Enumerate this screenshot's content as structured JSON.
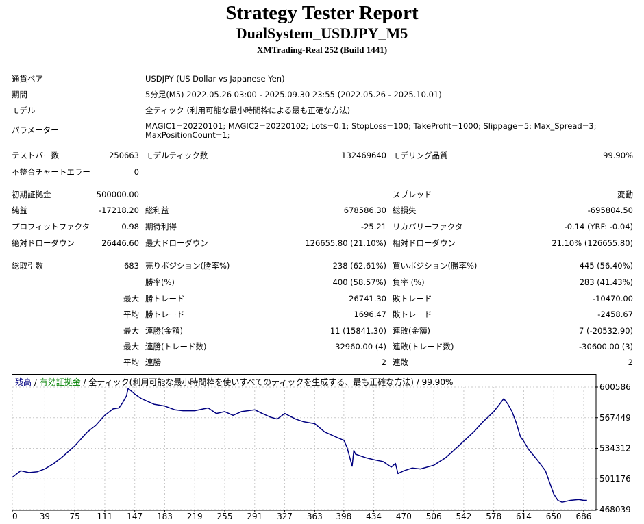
{
  "header": {
    "title": "Strategy Tester Report",
    "subtitle": "DualSystem_USDJPY_M5",
    "account": "XMTrading-Real 252 (Build 1441)"
  },
  "info": {
    "symbol_label": "通貨ペア",
    "symbol_value": "USDJPY (US Dollar vs Japanese Yen)",
    "period_label": "期間",
    "period_value": "5分足(M5) 2022.05.26 03:00 - 2025.09.30 23:55 (2022.05.26 - 2025.10.01)",
    "model_label": "モデル",
    "model_value": "全ティック (利用可能な最小時間枠による最も正確な方法)",
    "params_label": "パラメーター",
    "params_line1": "MAGIC1=20220101; MAGIC2=20220102; Lots=0.1; StopLoss=100; TakeProfit=1000; Slippage=5; Max_Spread=3;",
    "params_line2": "MaxPositionCount=1;"
  },
  "stats": {
    "bars_label": "テストバー数",
    "bars_value": "250663",
    "ticks_label": "モデルティック数",
    "ticks_value": "132469640",
    "quality_label": "モデリング品質",
    "quality_value": "99.90%",
    "mismatch_label": "不整合チャートエラー",
    "mismatch_value": "0",
    "deposit_label": "初期証拠金",
    "deposit_value": "500000.00",
    "spread_label": "スプレッド",
    "spread_value": "変動",
    "net_label": "純益",
    "net_value": "-17218.20",
    "gross_profit_label": "総利益",
    "gross_profit_value": "678586.30",
    "gross_loss_label": "総損失",
    "gross_loss_value": "-695804.50",
    "pf_label": "プロフィットファクタ",
    "pf_value": "0.98",
    "expected_label": "期待利得",
    "expected_value": "-25.21",
    "recovery_label": "リカバリーファクタ",
    "recovery_value": "-0.14 (YRF: -0.04)",
    "abs_dd_label": "絶対ドローダウン",
    "abs_dd_value": "26446.60",
    "max_dd_label": "最大ドローダウン",
    "max_dd_value": "126655.80 (21.10%)",
    "rel_dd_label": "相対ドローダウン",
    "rel_dd_value": "21.10% (126655.80)",
    "trades_label": "総取引数",
    "trades_value": "683",
    "short_label": "売りポジション(勝率%)",
    "short_value": "238 (62.61%)",
    "long_label": "買いポジション(勝率%)",
    "long_value": "445 (56.40%)",
    "winrate_label": "勝率(%)",
    "winrate_value": "400 (58.57%)",
    "lossrate_label": "負率 (%)",
    "lossrate_value": "283 (41.43%)",
    "max_word": "最大",
    "avg_word": "平均",
    "best_label": "勝トレード",
    "best_value": "26741.30",
    "worst_label": "敗トレード",
    "worst_value": "-10470.00",
    "avg_win_label": "勝トレード",
    "avg_win_value": "1696.47",
    "avg_loss_label": "敗トレード",
    "avg_loss_value": "-2458.67",
    "max_consec_wins_label": "連勝(金額)",
    "max_consec_wins_value": "11 (15841.30)",
    "max_consec_losses_label": "連敗(金額)",
    "max_consec_losses_value": "7 (-20532.90)",
    "max_consec_profit_label": "連勝(トレード数)",
    "max_consec_profit_value": "32960.00 (4)",
    "max_consec_loss_label": "連敗(トレード数)",
    "max_consec_loss_value": "-30600.00 (3)",
    "avg_consec_wins_label": "連勝",
    "avg_consec_wins_value": "2",
    "avg_consec_losses_label": "連敗",
    "avg_consec_losses_value": "2"
  },
  "legend": {
    "balance": "残高",
    "sep1": " / ",
    "equity": "有効証拠金",
    "rest": " / 全ティック(利用可能な最小時間枠を使いすべてのティックを生成する、最も正確な方法) / 99.90%",
    "balance_color": "#000080",
    "equity_color": "#008000"
  },
  "chart_data": {
    "type": "line",
    "title": "",
    "xlabel": "",
    "ylabel": "",
    "xlim": [
      0,
      700
    ],
    "ylim": [
      468039,
      600586
    ],
    "x_ticks": [
      0,
      39,
      75,
      111,
      147,
      183,
      219,
      255,
      291,
      327,
      363,
      398,
      434,
      470,
      506,
      542,
      578,
      614,
      650,
      686
    ],
    "y_ticks": [
      600586,
      567449,
      534312,
      501176,
      468039
    ],
    "grid": true,
    "series": [
      {
        "name": "残高",
        "color": "#000080",
        "x": [
          0,
          10,
          20,
          30,
          39,
          50,
          60,
          75,
          90,
          100,
          111,
          121,
          128,
          132,
          137,
          139,
          147,
          155,
          160,
          170,
          183,
          195,
          205,
          219,
          235,
          245,
          255,
          265,
          275,
          291,
          300,
          310,
          318,
          327,
          340,
          350,
          363,
          375,
          390,
          398,
          402,
          408,
          410,
          412,
          425,
          434,
          445,
          455,
          460,
          463,
          470,
          480,
          490,
          506,
          520,
          530,
          542,
          555,
          565,
          578,
          585,
          590,
          595,
          600,
          605,
          610,
          614,
          620,
          630,
          640,
          650,
          655,
          660,
          670,
          680,
          686,
          690
        ],
        "y": [
          503000,
          510000,
          508000,
          509000,
          512000,
          518000,
          525000,
          537000,
          552000,
          559000,
          570000,
          577000,
          578000,
          583000,
          591000,
          599000,
          593000,
          588000,
          586000,
          582000,
          580000,
          576000,
          575000,
          575000,
          578000,
          572000,
          574000,
          570000,
          574000,
          576000,
          572000,
          568000,
          566000,
          572000,
          566000,
          563000,
          561000,
          552000,
          546000,
          543000,
          535000,
          515000,
          532000,
          528000,
          524000,
          522000,
          520000,
          514000,
          518000,
          507000,
          510000,
          513000,
          512000,
          516000,
          524000,
          532000,
          542000,
          553000,
          563000,
          574000,
          582000,
          588000,
          582000,
          574000,
          562000,
          547000,
          542000,
          533000,
          522000,
          510000,
          485000,
          478000,
          476000,
          478000,
          479000,
          478000,
          478000
        ]
      }
    ]
  }
}
